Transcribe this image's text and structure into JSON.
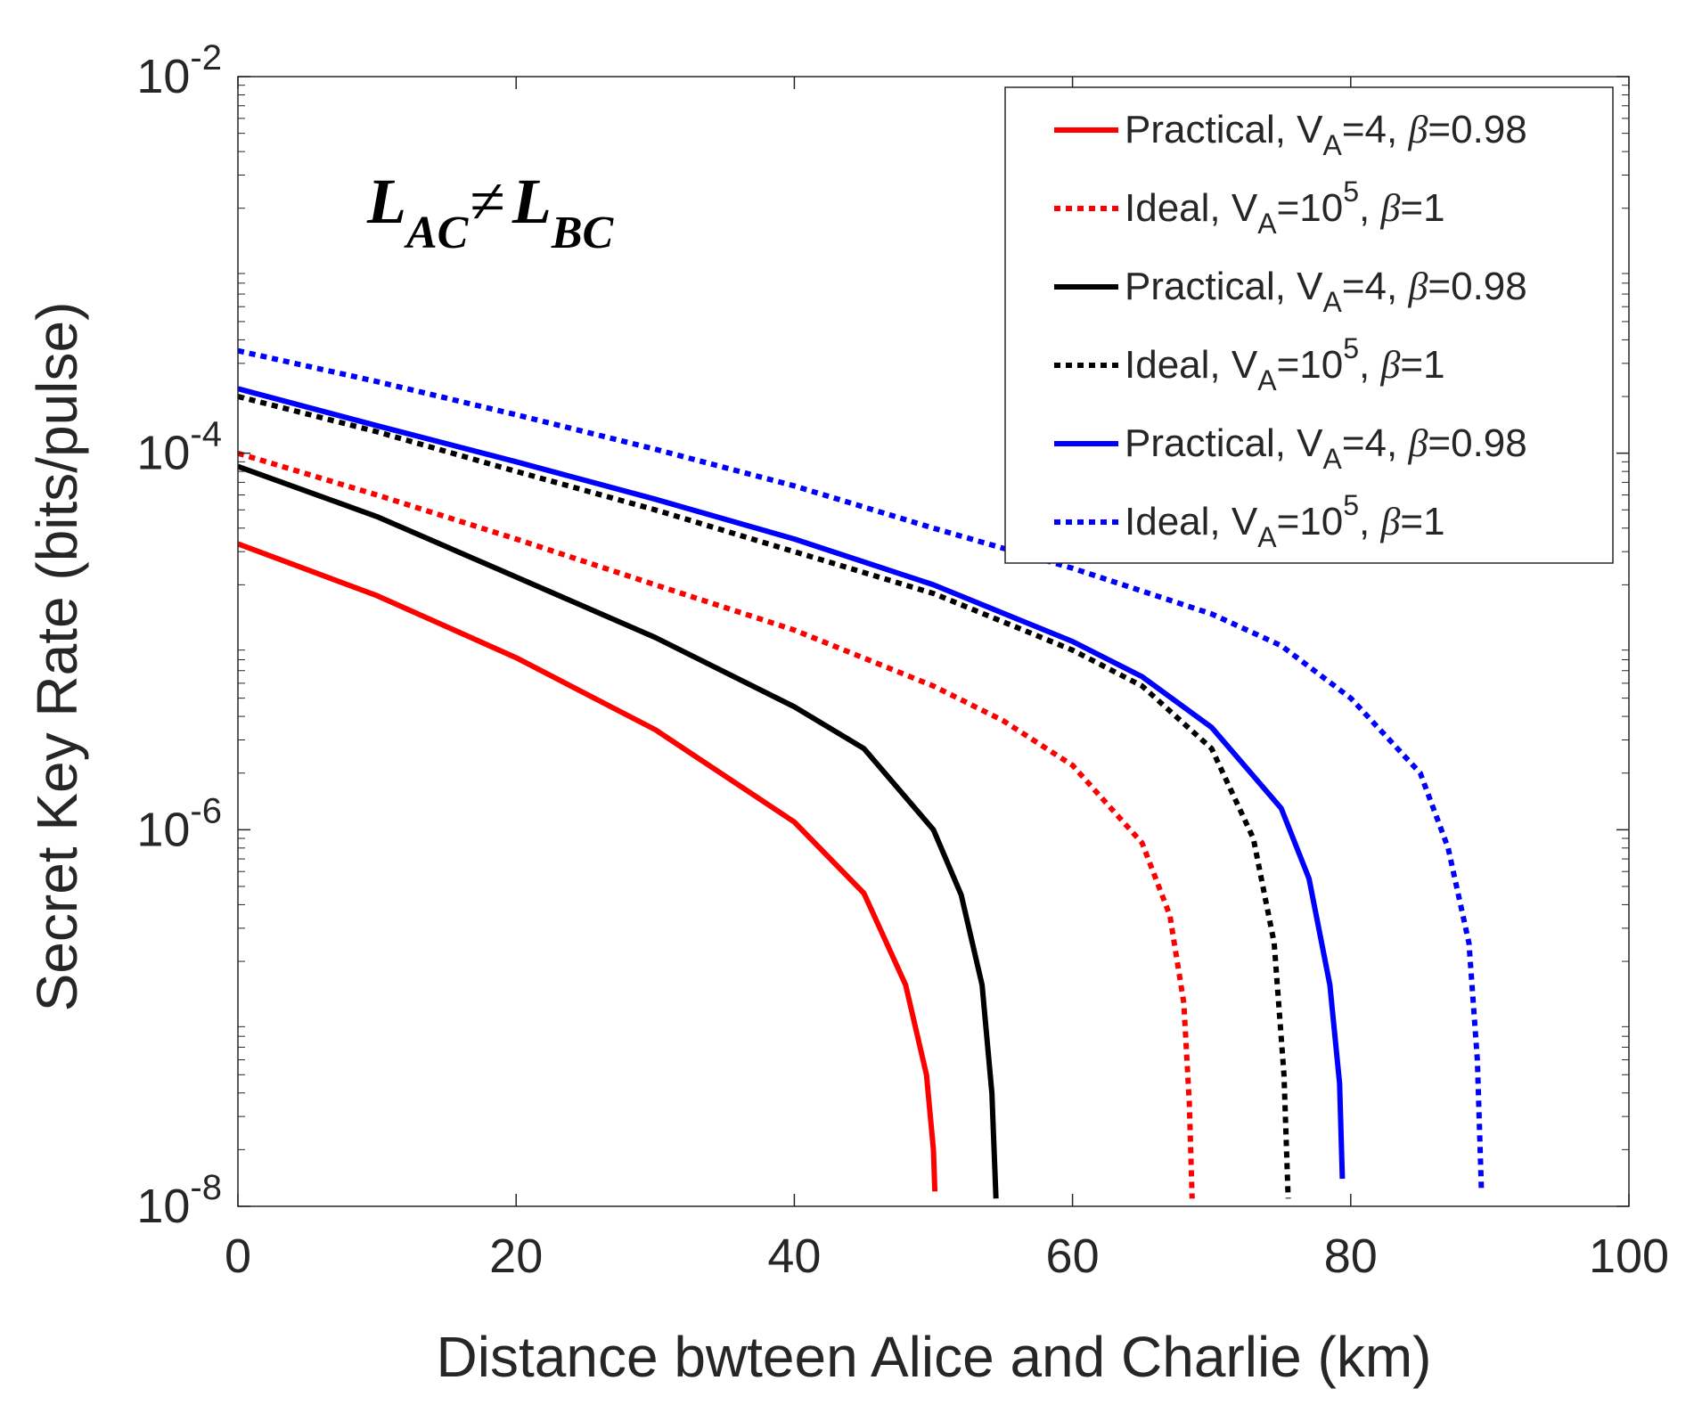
{
  "chart_data": {
    "type": "line",
    "title": "",
    "xlabel": "Distance bwteen Alice and Charlie (km)",
    "ylabel": "Secret Key Rate (bits/pulse)",
    "xlim": [
      0,
      100
    ],
    "ylim": [
      1e-08,
      0.01
    ],
    "yscale": "log",
    "grid": false,
    "legend_position": "top-right",
    "x_ticks": [
      "0",
      "20",
      "40",
      "60",
      "80",
      "100"
    ],
    "y_ticks": [
      {
        "base": "10",
        "exp": "-8"
      },
      {
        "base": "10",
        "exp": "-6"
      },
      {
        "base": "10",
        "exp": "-4"
      },
      {
        "base": "10",
        "exp": "-2"
      }
    ],
    "annotation": {
      "left": "L",
      "left_sub": "AC",
      "relation": "≠",
      "right": "L",
      "right_sub": "BC"
    },
    "series": [
      {
        "legend": {
          "prefix": "Practical, V",
          "sub": "A",
          "mid": "=4, ",
          "sup": "",
          "beta": "β",
          "suffix": "=0.98"
        },
        "color": "#ff0000",
        "style": "solid",
        "x": [
          0,
          10,
          20,
          30,
          40,
          45,
          48,
          49.5,
          50.0,
          50.1
        ],
        "y": [
          3.3e-05,
          1.75e-05,
          8.2e-06,
          3.4e-06,
          1.1e-06,
          4.6e-07,
          1.5e-07,
          5e-08,
          2e-08,
          1.2e-08
        ]
      },
      {
        "legend": {
          "prefix": "Ideal, V",
          "sub": "A",
          "mid": "=10",
          "sup": "5",
          "beta": "β",
          "suffix": "=1"
        },
        "color": "#ff0000",
        "style": "dotted",
        "x": [
          0,
          10,
          20,
          30,
          40,
          50,
          55,
          60,
          65,
          67,
          68,
          68.4,
          68.6
        ],
        "y": [
          0.0001,
          6e-05,
          3.5e-05,
          2e-05,
          1.15e-05,
          5.8e-06,
          3.8e-06,
          2.2e-06,
          8.5e-07,
          3.5e-07,
          1.2e-07,
          3.5e-08,
          1.1e-08
        ]
      },
      {
        "legend": {
          "prefix": "Practical, V",
          "sub": "A",
          "mid": "=4, ",
          "sup": "",
          "beta": "β",
          "suffix": "=0.98"
        },
        "color": "#000000",
        "style": "solid",
        "x": [
          0,
          10,
          20,
          30,
          40,
          45,
          50,
          52,
          53.5,
          54.2,
          54.5
        ],
        "y": [
          8.5e-05,
          4.6e-05,
          2.2e-05,
          1.05e-05,
          4.5e-06,
          2.7e-06,
          1e-06,
          4.5e-07,
          1.5e-07,
          4e-08,
          1.1e-08
        ]
      },
      {
        "legend": {
          "prefix": "Ideal, V",
          "sub": "A",
          "mid": "=10",
          "sup": "5",
          "beta": "β",
          "suffix": "=1"
        },
        "color": "#000000",
        "style": "dotted",
        "x": [
          0,
          10,
          20,
          30,
          40,
          50,
          60,
          65,
          70,
          73,
          74.5,
          75.2,
          75.5
        ],
        "y": [
          0.0002,
          0.00013,
          8e-05,
          5e-05,
          3e-05,
          1.8e-05,
          9e-06,
          5.8e-06,
          2.7e-06,
          9e-07,
          2.5e-07,
          5e-08,
          1.1e-08
        ]
      },
      {
        "legend": {
          "prefix": "Practical, V",
          "sub": "A",
          "mid": "=4, ",
          "sup": "",
          "beta": "β",
          "suffix": "=0.98"
        },
        "color": "#0000ff",
        "style": "solid",
        "x": [
          0,
          10,
          20,
          30,
          40,
          50,
          60,
          65,
          70,
          75,
          77,
          78.5,
          79.2,
          79.4
        ],
        "y": [
          0.00022,
          0.00014,
          9e-05,
          5.7e-05,
          3.5e-05,
          2e-05,
          1e-05,
          6.5e-06,
          3.5e-06,
          1.3e-06,
          5.5e-07,
          1.5e-07,
          4.5e-08,
          1.4e-08
        ]
      },
      {
        "legend": {
          "prefix": "Ideal, V",
          "sub": "A",
          "mid": "=10",
          "sup": "5",
          "beta": "β",
          "suffix": "=1"
        },
        "color": "#0000ff",
        "style": "dotted",
        "x": [
          0,
          10,
          20,
          30,
          40,
          50,
          60,
          70,
          75,
          80,
          85,
          87,
          88.5,
          89.1,
          89.4
        ],
        "y": [
          0.00035,
          0.00024,
          0.00016,
          0.000105,
          6.7e-05,
          4e-05,
          2.45e-05,
          1.4e-05,
          9.5e-06,
          5e-06,
          2e-06,
          8e-07,
          2.5e-07,
          6e-08,
          1.2e-08
        ]
      }
    ]
  }
}
